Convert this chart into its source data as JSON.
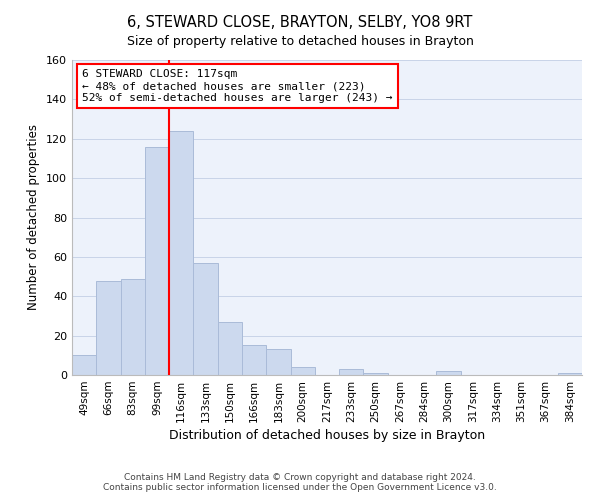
{
  "title": "6, STEWARD CLOSE, BRAYTON, SELBY, YO8 9RT",
  "subtitle": "Size of property relative to detached houses in Brayton",
  "xlabel": "Distribution of detached houses by size in Brayton",
  "ylabel": "Number of detached properties",
  "bar_labels": [
    "49sqm",
    "66sqm",
    "83sqm",
    "99sqm",
    "116sqm",
    "133sqm",
    "150sqm",
    "166sqm",
    "183sqm",
    "200sqm",
    "217sqm",
    "233sqm",
    "250sqm",
    "267sqm",
    "284sqm",
    "300sqm",
    "317sqm",
    "334sqm",
    "351sqm",
    "367sqm",
    "384sqm"
  ],
  "bar_heights": [
    10,
    48,
    49,
    116,
    124,
    57,
    27,
    15,
    13,
    4,
    0,
    3,
    1,
    0,
    0,
    2,
    0,
    0,
    0,
    0,
    1
  ],
  "bar_color": "#ccd9ee",
  "bar_edge_color": "#aabbd8",
  "red_line_index": 4,
  "annotation_line1": "6 STEWARD CLOSE: 117sqm",
  "annotation_line2": "← 48% of detached houses are smaller (223)",
  "annotation_line3": "52% of semi-detached houses are larger (243) →",
  "ylim": [
    0,
    160
  ],
  "yticks": [
    0,
    20,
    40,
    60,
    80,
    100,
    120,
    140,
    160
  ],
  "footer1": "Contains HM Land Registry data © Crown copyright and database right 2024.",
  "footer2": "Contains public sector information licensed under the Open Government Licence v3.0.",
  "bg_color": "#edf2fb"
}
